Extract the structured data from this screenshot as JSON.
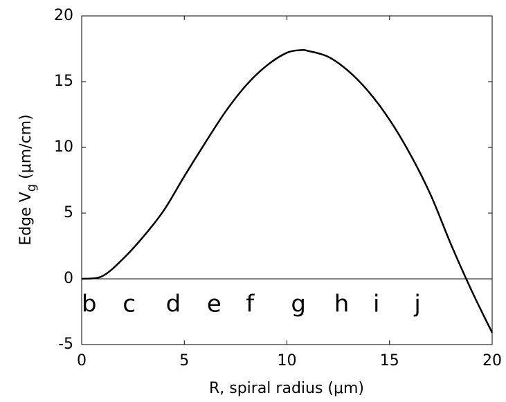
{
  "chart_data": {
    "type": "line",
    "xlabel": "R, spiral radius (μm)",
    "ylabel": [
      "Edge  V",
      "g",
      " (μm/cm)"
    ],
    "x": [
      0,
      1,
      2,
      3,
      4,
      5,
      6,
      7,
      8,
      9,
      10,
      10.7,
      11,
      12,
      13,
      14,
      15,
      16,
      17,
      18,
      19,
      20
    ],
    "series": [
      {
        "color": "#000000",
        "values": [
          0,
          0.2,
          1.5,
          3.2,
          5.2,
          7.8,
          10.3,
          12.7,
          14.7,
          16.2,
          17.2,
          17.4,
          17.35,
          16.9,
          15.8,
          14.2,
          12.1,
          9.5,
          6.4,
          2.6,
          -0.9,
          -4.1
        ]
      }
    ],
    "hline": 0,
    "annotations": [
      {
        "text": "b",
        "x": 0,
        "y": -2
      },
      {
        "text": "c",
        "x": 2,
        "y": -2
      },
      {
        "text": "d",
        "x": 4.1,
        "y": -2
      },
      {
        "text": "e",
        "x": 6.1,
        "y": -2
      },
      {
        "text": "f",
        "x": 8,
        "y": -2
      },
      {
        "text": "g",
        "x": 10.2,
        "y": -2
      },
      {
        "text": "h",
        "x": 12.3,
        "y": -2
      },
      {
        "text": "i",
        "x": 14.2,
        "y": -2
      },
      {
        "text": "j",
        "x": 16.2,
        "y": -2
      }
    ],
    "xlim": [
      0,
      20
    ],
    "xticks": [
      0,
      5,
      10,
      15,
      20
    ],
    "ylim": [
      -5,
      20
    ],
    "yticks": [
      -5,
      0,
      5,
      10,
      15,
      20
    ]
  }
}
